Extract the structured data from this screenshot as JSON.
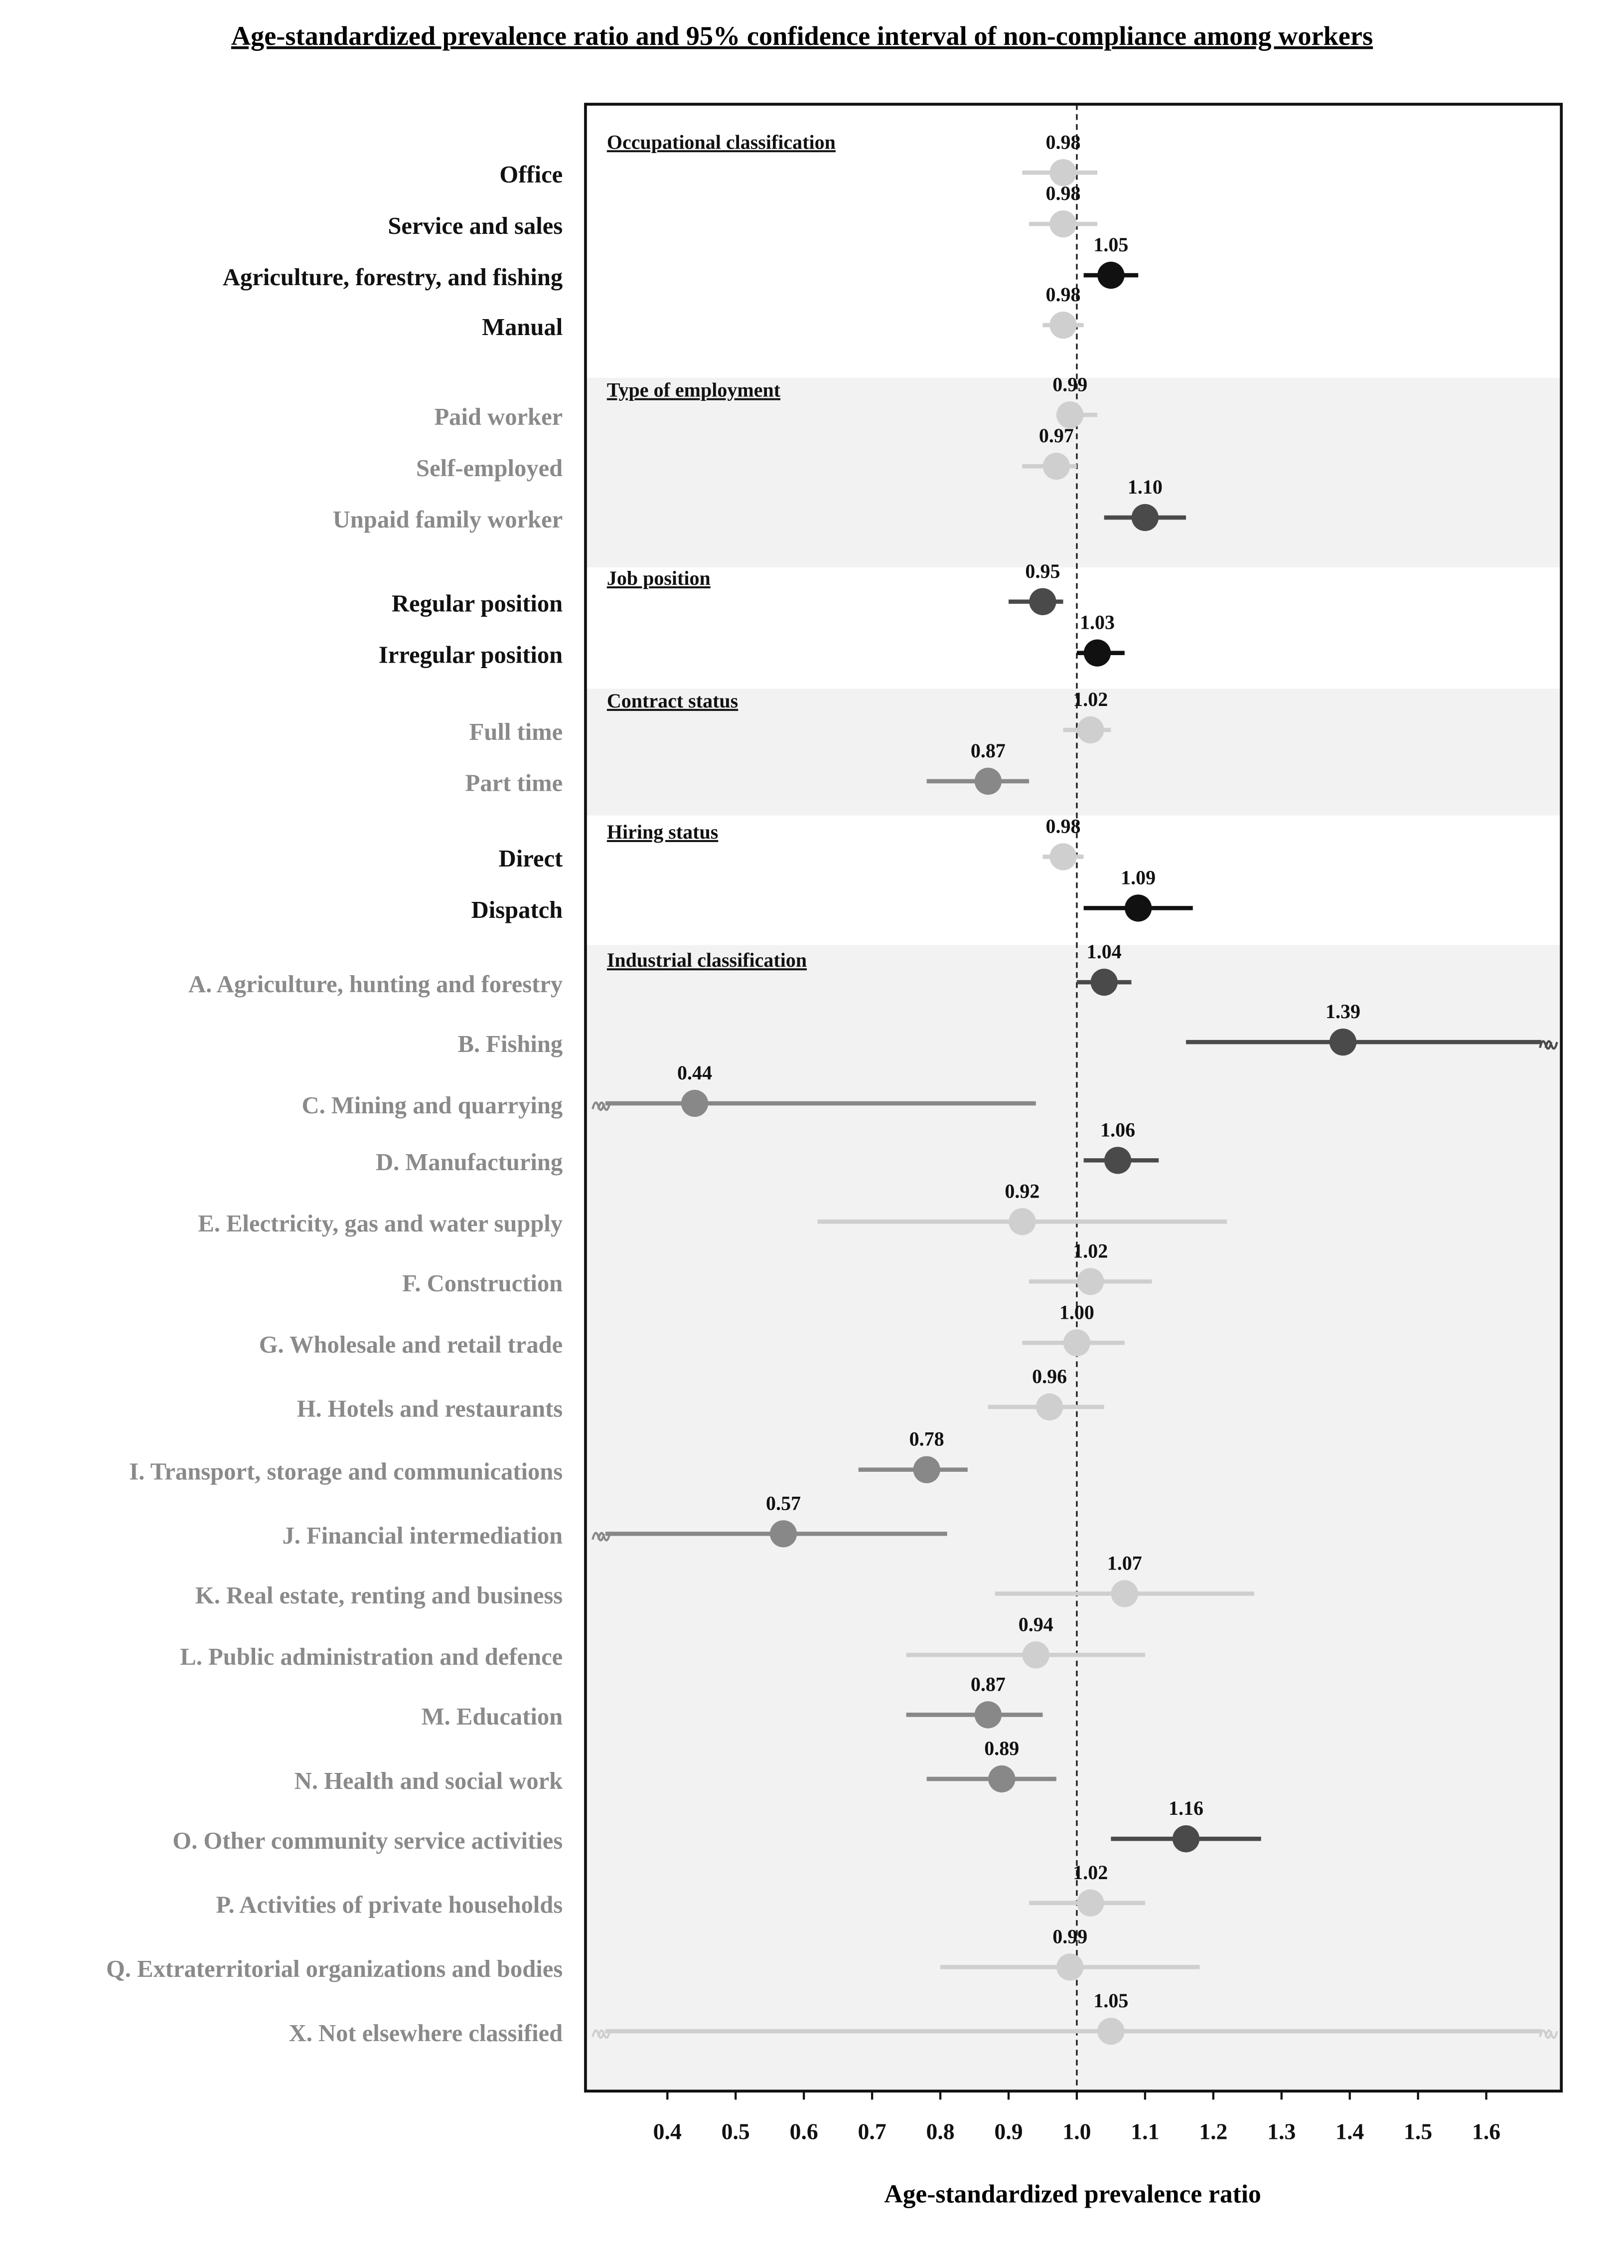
{
  "chart_data": {
    "type": "forest",
    "title": "Age-standardized prevalence ratio and 95% confidence interval of non-compliance among workers",
    "x_label": "Age-standardized prevalence ratio",
    "xlim": [
      0.28,
      1.71
    ],
    "xticks": [
      0.4,
      0.5,
      0.6,
      0.7,
      0.8,
      0.9,
      {
        "value": 1,
        "label": "1.0"
      },
      1.1,
      1.2,
      1.3,
      1.4,
      1.5,
      1.6
    ],
    "reference_line": 1,
    "sections": [
      {
        "title": "Occupational classification",
        "background": "#ffffff",
        "label_color": "#111111",
        "rows": [
          {
            "label": "Office",
            "value": 0.98,
            "value_label": "0.98",
            "ci": [
              0.92,
              1.03
            ],
            "color": "#cfcfcf"
          },
          {
            "label": "Service and sales",
            "value": 0.98,
            "value_label": "0.98",
            "ci": [
              0.93,
              1.03
            ],
            "color": "#cfcfcf"
          },
          {
            "label": "Agriculture, forestry, and fishing",
            "value": 1.05,
            "value_label": "1.05",
            "ci": [
              1.01,
              1.09
            ],
            "color": "#111111"
          },
          {
            "label": "Manual",
            "value": 0.98,
            "value_label": "0.98",
            "ci": [
              0.95,
              1.01
            ],
            "color": "#cfcfcf"
          }
        ]
      },
      {
        "title": "Type of employment",
        "background": "#f2f2f2",
        "label_color": "#8a8a8a",
        "rows": [
          {
            "label": "Paid worker",
            "value": 0.99,
            "value_label": "0.99",
            "ci": [
              0.97,
              1.03
            ],
            "color": "#cfcfcf"
          },
          {
            "label": "Self-employed",
            "value": 0.97,
            "value_label": "0.97",
            "ci": [
              0.92,
              1.0
            ],
            "color": "#cfcfcf"
          },
          {
            "label": "Unpaid family worker",
            "value": 1.1,
            "value_label": "1.10",
            "ci": [
              1.04,
              1.16
            ],
            "color": "#4a4a4a"
          }
        ]
      },
      {
        "title": "Job position",
        "background": "#ffffff",
        "label_color": "#111111",
        "rows": [
          {
            "label": "Regular position",
            "value": 0.95,
            "value_label": "0.95",
            "ci": [
              0.9,
              0.98
            ],
            "color": "#4a4a4a"
          },
          {
            "label": "Irregular position",
            "value": 1.03,
            "value_label": "1.03",
            "ci": [
              1.0,
              1.07
            ],
            "color": "#111111"
          }
        ]
      },
      {
        "title": "Contract status",
        "background": "#f2f2f2",
        "label_color": "#8a8a8a",
        "rows": [
          {
            "label": "Full time",
            "value": 1.02,
            "value_label": "1.02",
            "ci": [
              0.98,
              1.05
            ],
            "color": "#cfcfcf"
          },
          {
            "label": "Part time",
            "value": 0.87,
            "value_label": "0.87",
            "ci": [
              0.78,
              0.93
            ],
            "color": "#888888"
          }
        ]
      },
      {
        "title": "Hiring status",
        "background": "#ffffff",
        "label_color": "#111111",
        "rows": [
          {
            "label": "Direct",
            "value": 0.98,
            "value_label": "0.98",
            "ci": [
              0.95,
              1.01
            ],
            "color": "#cfcfcf"
          },
          {
            "label": "Dispatch",
            "value": 1.09,
            "value_label": "1.09",
            "ci": [
              1.01,
              1.17
            ],
            "color": "#111111"
          }
        ]
      },
      {
        "title": "Industrial classification",
        "background": "#f2f2f2",
        "label_color": "#8a8a8a",
        "rows": [
          {
            "label": "A. Agriculture, hunting and forestry",
            "value": 1.04,
            "value_label": "1.04",
            "ci": [
              1.0,
              1.08
            ],
            "color": "#4a4a4a"
          },
          {
            "label": "B. Fishing",
            "value": 1.39,
            "value_label": "1.39",
            "ci": [
              1.16,
              null
            ],
            "color": "#4a4a4a"
          },
          {
            "label": "C. Mining and quarrying",
            "value": 0.44,
            "value_label": "0.44",
            "ci": [
              null,
              0.94
            ],
            "color": "#888888"
          },
          {
            "label": "D. Manufacturing",
            "value": 1.06,
            "value_label": "1.06",
            "ci": [
              1.01,
              1.12
            ],
            "color": "#4a4a4a"
          },
          {
            "label": "E. Electricity, gas and water supply",
            "value": 0.92,
            "value_label": "0.92",
            "ci": [
              0.62,
              1.22
            ],
            "color": "#cfcfcf"
          },
          {
            "label": "F. Construction",
            "value": 1.02,
            "value_label": "1.02",
            "ci": [
              0.93,
              1.11
            ],
            "color": "#cfcfcf"
          },
          {
            "label": "G. Wholesale and retail trade",
            "value": 1.0,
            "value_label": "1.00",
            "ci": [
              0.92,
              1.07
            ],
            "color": "#cfcfcf"
          },
          {
            "label": "H. Hotels and restaurants",
            "value": 0.96,
            "value_label": "0.96",
            "ci": [
              0.87,
              1.04
            ],
            "color": "#cfcfcf"
          },
          {
            "label": "I. Transport, storage and communications",
            "value": 0.78,
            "value_label": "0.78",
            "ci": [
              0.68,
              0.84
            ],
            "color": "#888888"
          },
          {
            "label": "J. Financial intermediation",
            "value": 0.57,
            "value_label": "0.57",
            "ci": [
              null,
              0.81
            ],
            "color": "#888888"
          },
          {
            "label": "K. Real estate, renting and business",
            "value": 1.07,
            "value_label": "1.07",
            "ci": [
              0.88,
              1.26
            ],
            "color": "#cfcfcf"
          },
          {
            "label": "L. Public administration and defence",
            "value": 0.94,
            "value_label": "0.94",
            "ci": [
              0.75,
              1.1
            ],
            "color": "#cfcfcf"
          },
          {
            "label": "M. Education",
            "value": 0.87,
            "value_label": "0.87",
            "ci": [
              0.75,
              0.95
            ],
            "color": "#888888"
          },
          {
            "label": "N. Health and social work",
            "value": 0.89,
            "value_label": "0.89",
            "ci": [
              0.78,
              0.97
            ],
            "color": "#888888"
          },
          {
            "label": "O. Other community service activities",
            "value": 1.16,
            "value_label": "1.16",
            "ci": [
              1.05,
              1.27
            ],
            "color": "#4a4a4a"
          },
          {
            "label": "P. Activities of private households",
            "value": 1.02,
            "value_label": "1.02",
            "ci": [
              0.93,
              1.1
            ],
            "color": "#cfcfcf"
          },
          {
            "label": "Q. Extraterritorial organizations and bodies",
            "value": 0.99,
            "value_label": "0.99",
            "ci": [
              0.8,
              1.18
            ],
            "color": "#cfcfcf"
          },
          {
            "label": "X. Not elsewhere classified",
            "value": 1.05,
            "value_label": "1.05",
            "ci": [
              null,
              null
            ],
            "color": "#cfcfcf"
          }
        ]
      }
    ]
  }
}
